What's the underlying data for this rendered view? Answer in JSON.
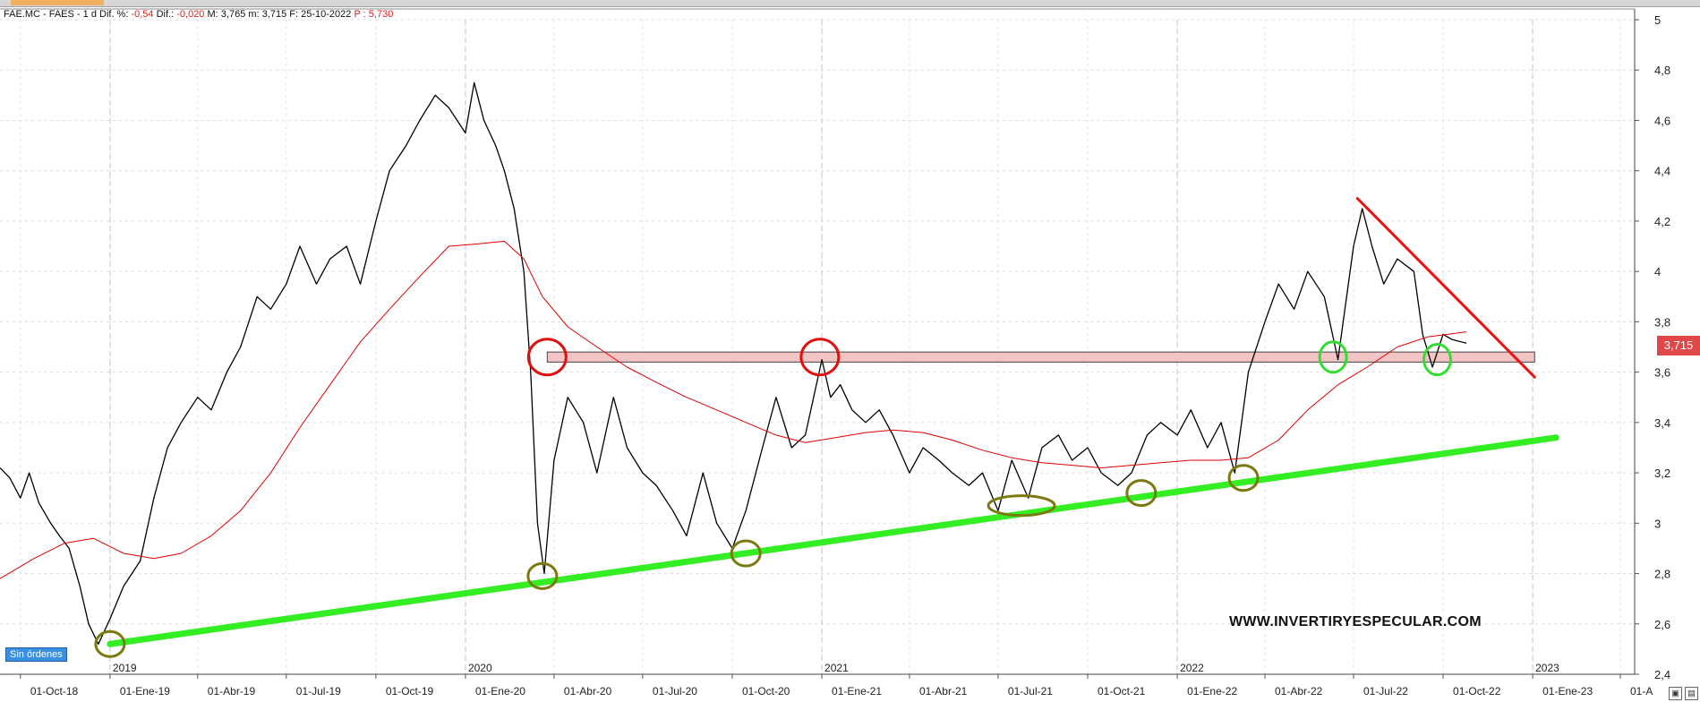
{
  "header": {
    "symbol": "FAE.MC - FAES -",
    "timeframe": "1 d",
    "diff_pct_label": "Dif. %:",
    "diff_pct_value": "-0,54",
    "diff_label": "Dif.:",
    "diff_value": "-0,020",
    "max_label": "M:",
    "max_value": "3,765",
    "min_label": "m:",
    "min_value": "3,715",
    "date_label": "F:",
    "date_value": "25-10-2022",
    "p_label": "P :",
    "p_value": "5,730"
  },
  "badge": {
    "label": "Sin órdenes"
  },
  "watermark": {
    "text": "WWW.INVERTIRYESPECULAR.COM"
  },
  "price_tag": {
    "value": "3,715"
  },
  "colors": {
    "price_line": "#000000",
    "moving_average": "#e00000",
    "support_trendline": "#33ee22",
    "resistance_line": "#ee1111",
    "resistance_zone": "#f3c4c4",
    "swing_low_marker": "#7a7a10",
    "resistance_marker": "#e01010",
    "retest_marker": "#33dd33"
  },
  "chart_data": {
    "type": "line",
    "title": "",
    "xlabel": "",
    "ylabel": "",
    "ylim": [
      2.4,
      5.0
    ],
    "grid": true,
    "y_ticks": [
      2.4,
      2.6,
      2.8,
      3.0,
      3.2,
      3.4,
      3.6,
      3.8,
      4.0,
      4.2,
      4.4,
      4.6,
      4.8,
      5.0
    ],
    "y_tick_labels": [
      "2,4",
      "2,6",
      "2,8",
      "3",
      "3,2",
      "3,4",
      "3,6",
      "3,8",
      "4",
      "4,2",
      "4,4",
      "4,6",
      "4,8",
      "5"
    ],
    "x_ticks": [
      "2018-10-01",
      "2019-01-01",
      "2019-04-01",
      "2019-07-01",
      "2019-10-01",
      "2020-01-01",
      "2020-04-01",
      "2020-07-01",
      "2020-10-01",
      "2021-01-01",
      "2021-04-01",
      "2021-07-01",
      "2021-10-01",
      "2022-01-01",
      "2022-04-01",
      "2022-07-01",
      "2022-10-01",
      "2023-01-01",
      "2023-04-01"
    ],
    "x_tick_labels": [
      "01-Oct-18",
      "01-Ene-19",
      "01-Abr-19",
      "01-Jul-19",
      "01-Oct-19",
      "01-Ene-20",
      "01-Abr-20",
      "01-Jul-20",
      "01-Oct-20",
      "01-Ene-21",
      "01-Abr-21",
      "01-Jul-21",
      "01-Oct-21",
      "01-Ene-22",
      "01-Abr-22",
      "01-Jul-22",
      "01-Oct-22",
      "01-Ene-23",
      "01-A"
    ],
    "year_markers": [
      {
        "label": "2019",
        "x": "2019-01-01"
      },
      {
        "label": "2020",
        "x": "2020-01-01"
      },
      {
        "label": "2021",
        "x": "2021-01-01"
      },
      {
        "label": "2022",
        "x": "2022-01-01"
      },
      {
        "label": "2023",
        "x": "2023-01-01"
      }
    ],
    "series": [
      {
        "type": "line",
        "x": [
          "2018-09-10",
          "2018-09-20",
          "2018-10-01",
          "2018-10-10",
          "2018-10-20",
          "2018-11-01",
          "2018-11-10",
          "2018-11-20",
          "2018-12-01",
          "2018-12-10",
          "2018-12-20",
          "2019-01-01",
          "2019-01-15",
          "2019-02-01",
          "2019-02-15",
          "2019-03-01",
          "2019-03-15",
          "2019-04-01",
          "2019-04-15",
          "2019-05-01",
          "2019-05-15",
          "2019-06-01",
          "2019-06-15",
          "2019-07-01",
          "2019-07-15",
          "2019-08-01",
          "2019-08-15",
          "2019-09-01",
          "2019-09-15",
          "2019-10-01",
          "2019-10-15",
          "2019-11-01",
          "2019-11-15",
          "2019-12-01",
          "2019-12-15",
          "2020-01-01",
          "2020-01-10",
          "2020-01-20",
          "2020-02-01",
          "2020-02-10",
          "2020-02-20",
          "2020-03-01",
          "2020-03-08",
          "2020-03-15",
          "2020-03-22",
          "2020-04-01",
          "2020-04-15",
          "2020-05-01",
          "2020-05-15",
          "2020-06-01",
          "2020-06-15",
          "2020-07-01",
          "2020-07-15",
          "2020-08-01",
          "2020-08-15",
          "2020-09-01",
          "2020-09-15",
          "2020-10-01",
          "2020-10-15",
          "2020-11-01",
          "2020-11-15",
          "2020-12-01",
          "2020-12-15",
          "2021-01-01",
          "2021-01-10",
          "2021-01-20",
          "2021-02-01",
          "2021-02-15",
          "2021-03-01",
          "2021-03-15",
          "2021-04-01",
          "2021-04-15",
          "2021-05-01",
          "2021-05-15",
          "2021-06-01",
          "2021-06-15",
          "2021-07-01",
          "2021-07-15",
          "2021-08-01",
          "2021-08-15",
          "2021-09-01",
          "2021-09-15",
          "2021-10-01",
          "2021-10-15",
          "2021-11-01",
          "2021-11-15",
          "2021-12-01",
          "2021-12-15",
          "2022-01-01",
          "2022-01-15",
          "2022-02-01",
          "2022-02-15",
          "2022-03-01",
          "2022-03-15",
          "2022-04-01",
          "2022-04-15",
          "2022-05-01",
          "2022-05-15",
          "2022-06-01",
          "2022-06-15",
          "2022-07-01",
          "2022-07-10",
          "2022-07-20",
          "2022-08-01",
          "2022-08-15",
          "2022-09-01",
          "2022-09-10",
          "2022-09-20",
          "2022-10-01",
          "2022-10-10",
          "2022-10-25"
        ],
        "values": [
          3.22,
          3.18,
          3.1,
          3.2,
          3.08,
          3.0,
          2.95,
          2.9,
          2.75,
          2.6,
          2.52,
          2.62,
          2.75,
          2.85,
          3.1,
          3.3,
          3.4,
          3.5,
          3.45,
          3.6,
          3.7,
          3.9,
          3.85,
          3.95,
          4.1,
          3.95,
          4.05,
          4.1,
          3.95,
          4.2,
          4.4,
          4.5,
          4.6,
          4.7,
          4.65,
          4.55,
          4.75,
          4.6,
          4.5,
          4.4,
          4.25,
          4.0,
          3.6,
          3.0,
          2.8,
          3.25,
          3.5,
          3.4,
          3.2,
          3.5,
          3.3,
          3.2,
          3.15,
          3.05,
          2.95,
          3.2,
          3.0,
          2.9,
          3.05,
          3.3,
          3.5,
          3.3,
          3.35,
          3.65,
          3.5,
          3.55,
          3.45,
          3.4,
          3.45,
          3.35,
          3.2,
          3.3,
          3.25,
          3.2,
          3.15,
          3.2,
          3.05,
          3.25,
          3.1,
          3.3,
          3.35,
          3.25,
          3.3,
          3.2,
          3.15,
          3.2,
          3.35,
          3.4,
          3.35,
          3.45,
          3.3,
          3.4,
          3.2,
          3.6,
          3.8,
          3.95,
          3.85,
          4.0,
          3.9,
          3.65,
          4.1,
          4.25,
          4.1,
          3.95,
          4.05,
          4.0,
          3.75,
          3.62,
          3.75,
          3.73,
          3.715
        ]
      },
      {
        "type": "line",
        "x": [
          "2018-09-10",
          "2018-10-15",
          "2018-11-15",
          "2018-12-15",
          "2019-01-15",
          "2019-02-15",
          "2019-03-15",
          "2019-04-15",
          "2019-05-15",
          "2019-06-15",
          "2019-07-15",
          "2019-08-15",
          "2019-09-15",
          "2019-10-15",
          "2019-11-15",
          "2019-12-15",
          "2020-01-15",
          "2020-02-10",
          "2020-03-01",
          "2020-03-20",
          "2020-04-15",
          "2020-05-15",
          "2020-06-15",
          "2020-07-15",
          "2020-08-15",
          "2020-09-15",
          "2020-10-15",
          "2020-11-15",
          "2020-12-15",
          "2021-01-15",
          "2021-02-15",
          "2021-03-15",
          "2021-04-15",
          "2021-05-15",
          "2021-06-15",
          "2021-07-15",
          "2021-08-15",
          "2021-09-15",
          "2021-10-15",
          "2021-11-15",
          "2021-12-15",
          "2022-01-15",
          "2022-02-15",
          "2022-03-15",
          "2022-04-15",
          "2022-05-15",
          "2022-06-15",
          "2022-07-15",
          "2022-08-15",
          "2022-09-15",
          "2022-10-25"
        ],
        "values": [
          2.78,
          2.86,
          2.92,
          2.94,
          2.88,
          2.86,
          2.88,
          2.95,
          3.05,
          3.2,
          3.38,
          3.55,
          3.72,
          3.85,
          3.98,
          4.1,
          4.11,
          4.12,
          4.05,
          3.9,
          3.78,
          3.7,
          3.62,
          3.56,
          3.5,
          3.45,
          3.4,
          3.35,
          3.32,
          3.34,
          3.36,
          3.37,
          3.36,
          3.33,
          3.29,
          3.26,
          3.24,
          3.23,
          3.22,
          3.23,
          3.24,
          3.25,
          3.25,
          3.26,
          3.33,
          3.45,
          3.55,
          3.62,
          3.7,
          3.74,
          3.76
        ]
      }
    ],
    "annotations": {
      "support_trendline": {
        "x": [
          "2019-01-01",
          "2023-01-25"
        ],
        "y": [
          2.52,
          3.34
        ]
      },
      "resistance_trendline": {
        "x": [
          "2022-07-05",
          "2023-01-03"
        ],
        "y": [
          4.29,
          3.58
        ]
      },
      "resistance_zone": {
        "x": [
          "2020-03-25",
          "2023-01-03"
        ],
        "y": [
          3.64,
          3.68
        ]
      },
      "swing_low_markers": [
        {
          "x": "2019-01-01",
          "y": 2.52
        },
        {
          "x": "2020-03-20",
          "y": 2.79
        },
        {
          "x": "2020-10-15",
          "y": 2.88
        },
        {
          "x": "2021-07-25",
          "y": 3.07
        },
        {
          "x": "2021-11-25",
          "y": 3.12
        },
        {
          "x": "2022-03-10",
          "y": 3.18
        }
      ],
      "resistance_markers": [
        {
          "x": "2020-03-25",
          "y": 3.66
        },
        {
          "x": "2020-12-30",
          "y": 3.66
        }
      ],
      "retest_markers": [
        {
          "x": "2022-06-10",
          "y": 3.66
        },
        {
          "x": "2022-09-25",
          "y": 3.65
        }
      ]
    }
  }
}
